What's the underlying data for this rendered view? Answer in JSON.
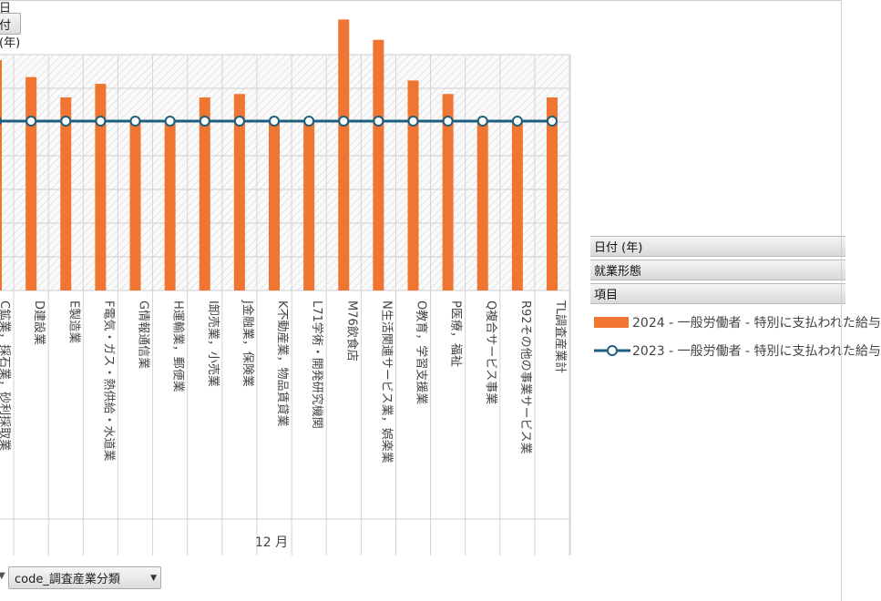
{
  "controls": {
    "date_field_label": "日付 (年)",
    "code_field_label": "code_調査産業分類"
  },
  "legend": {
    "headers": [
      "日付 (年)",
      "就業形態",
      "項目"
    ],
    "items": [
      {
        "label": "2024 - 一般労働者 - 特別に支払われた給与",
        "color": "#ef7530",
        "kind": "bar"
      },
      {
        "label": "2023 - 一般労働者 - 特別に支払われた給与",
        "color": "#1d5f7e",
        "kind": "line"
      }
    ]
  },
  "chart_data": {
    "type": "bar",
    "xlabel": "12 月",
    "categories": [
      "C鉱業，採石業，砂利採取業",
      "D建設業",
      "E製造業",
      "F電気・ガス・熱供給・水道業",
      "G情報通信業",
      "H運輸業，郵便業",
      "I卸売業，小売業",
      "J金融業，保険業",
      "K不動産業，物品賃貸業",
      "L71学術・開発研究機関",
      "M76飲食店",
      "N生活関連サービス業，娯楽業",
      "O教育，学習支援業",
      "P医療，福祉",
      "Q複合サービス事業",
      "R92その他の事業サービス業",
      "TL調査産業計"
    ],
    "series": [
      {
        "name": "2024 - 一般労働者 - 特別に支払われた給与",
        "type": "bar",
        "color": "#ef7530",
        "values": [
          1.18,
          1.13,
          1.07,
          1.11,
          1.0,
          1.0,
          1.07,
          1.08,
          1.0,
          1.0,
          1.3,
          1.24,
          1.12,
          1.08,
          1.0,
          1.0,
          1.07
        ]
      },
      {
        "name": "2023 - 一般労働者 - 特別に支払われた給与",
        "type": "line",
        "color": "#1d5f7e",
        "values": [
          1,
          1,
          1,
          1,
          1,
          1,
          1,
          1,
          1,
          1,
          1,
          1,
          1,
          1,
          1,
          1,
          1
        ]
      }
    ],
    "grid": true
  }
}
